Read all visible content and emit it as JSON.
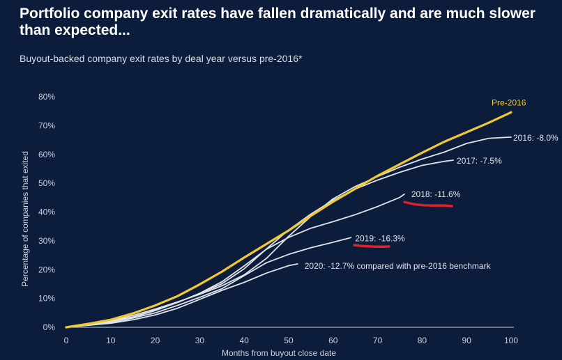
{
  "header": {
    "title": "Portfolio company exit rates have fallen dramatically and are much slower than expected...",
    "subtitle": "Buyout-backed company exit rates by deal year versus pre-2016*"
  },
  "colors": {
    "background": "#0c1c3b",
    "pre2016": "#f2c832",
    "cohort": "#dfe3ea",
    "highlight": "#e0202a",
    "axis": "#c9d0dc"
  },
  "chart_data": {
    "type": "line",
    "title": "",
    "xlabel": "Months from buyout close date",
    "ylabel": "Percentage of companies that exited",
    "xlim": [
      0,
      100
    ],
    "ylim": [
      0,
      80
    ],
    "x_ticks": [
      "0",
      "10",
      "20",
      "30",
      "40",
      "50",
      "60",
      "70",
      "80",
      "90",
      "100"
    ],
    "y_ticks": [
      "0%",
      "10%",
      "20%",
      "30%",
      "40%",
      "50%",
      "60%",
      "70%",
      "80%"
    ],
    "grid": false,
    "series": [
      {
        "name": "Pre-2016",
        "label": "Pre-2016",
        "color": "#f2c832",
        "x": [
          0,
          5,
          10,
          15,
          20,
          25,
          30,
          35,
          40,
          45,
          50,
          55,
          60,
          65,
          70,
          75,
          80,
          85,
          90,
          95,
          100
        ],
        "y": [
          0,
          1.2,
          2.6,
          4.8,
          7.6,
          10.8,
          14.9,
          19.3,
          24.2,
          28.9,
          33.6,
          38.7,
          43.6,
          48.1,
          52.6,
          56.6,
          60.6,
          64.4,
          67.7,
          71.0,
          74.6
        ]
      },
      {
        "name": "2016",
        "label": "2016: -8.0%",
        "color": "#dfe3ea",
        "x": [
          0,
          5,
          10,
          15,
          20,
          25,
          30,
          35,
          40,
          45,
          50,
          55,
          60,
          65,
          70,
          75,
          80,
          85,
          90,
          95,
          100
        ],
        "y": [
          0,
          1.0,
          2.3,
          4.1,
          6.3,
          8.8,
          11.4,
          14.4,
          18.2,
          23.9,
          31.6,
          38.5,
          44.6,
          48.9,
          52.3,
          55.6,
          58.4,
          60.8,
          63.8,
          65.6,
          66.0
        ]
      },
      {
        "name": "2017",
        "label": "2017: -7.5%",
        "color": "#dfe3ea",
        "x": [
          0,
          5,
          10,
          15,
          20,
          25,
          30,
          35,
          40,
          45,
          50,
          55,
          60,
          65,
          70,
          75,
          80,
          85,
          87
        ],
        "y": [
          0,
          0.9,
          2.1,
          3.5,
          5.8,
          8.6,
          11.7,
          15.1,
          20.3,
          27.2,
          33.8,
          39.3,
          44.1,
          48.0,
          51.1,
          53.8,
          56.2,
          57.6,
          58.0
        ]
      },
      {
        "name": "2018",
        "label": "2018: -11.6%",
        "color": "#dfe3ea",
        "x": [
          0,
          5,
          10,
          15,
          20,
          25,
          30,
          35,
          40,
          45,
          50,
          55,
          60,
          65,
          70,
          75,
          76
        ],
        "y": [
          0,
          0.9,
          2.0,
          3.6,
          5.9,
          8.6,
          11.8,
          15.8,
          21.3,
          27.1,
          31.2,
          34.4,
          36.7,
          39.1,
          41.9,
          45.1,
          46.2
        ]
      },
      {
        "name": "2019",
        "label": "2019: -16.3%",
        "color": "#dfe3ea",
        "x": [
          0,
          5,
          10,
          15,
          20,
          25,
          30,
          35,
          40,
          45,
          50,
          55,
          60,
          64
        ],
        "y": [
          0,
          0.8,
          1.7,
          3.2,
          5.0,
          7.6,
          10.4,
          13.4,
          17.9,
          22.4,
          25.3,
          27.6,
          29.5,
          31.1
        ]
      },
      {
        "name": "2020",
        "label": "2020: -12.7% compared with pre-2016 benchmark",
        "color": "#dfe3ea",
        "x": [
          0,
          5,
          10,
          15,
          20,
          25,
          30,
          35,
          40,
          45,
          50,
          52
        ],
        "y": [
          0,
          0.7,
          1.4,
          2.6,
          4.3,
          6.6,
          9.7,
          12.8,
          15.6,
          18.8,
          21.4,
          22.0
        ]
      }
    ]
  }
}
